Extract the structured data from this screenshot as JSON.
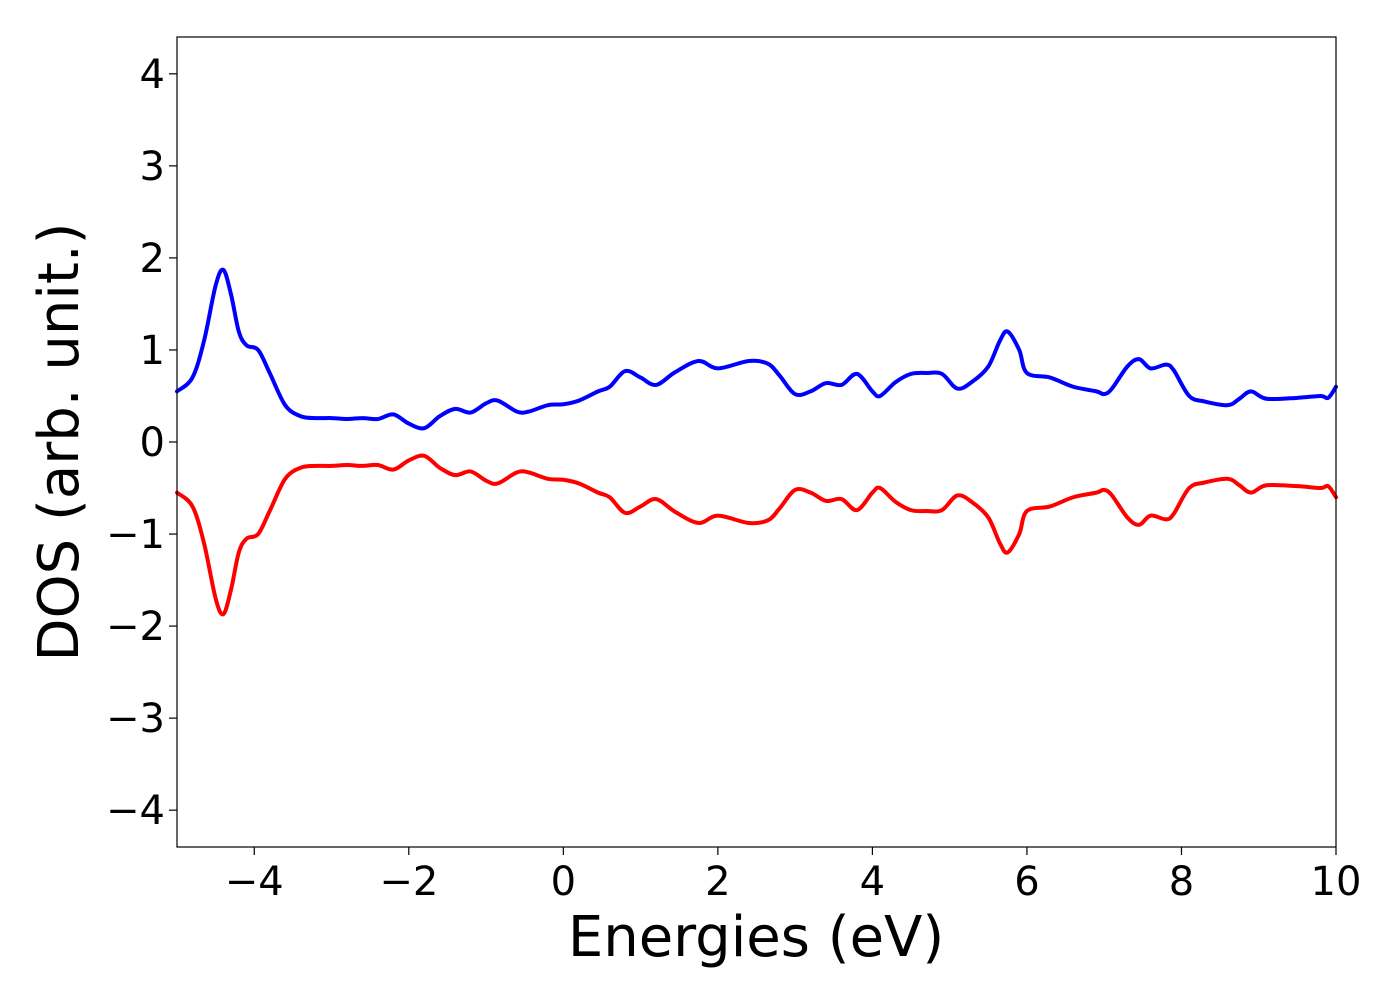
{
  "chart_data": {
    "type": "line",
    "title": "",
    "xlabel": "Energies (eV)",
    "ylabel": "DOS (arb. unit.)",
    "xlim": [
      -5,
      10
    ],
    "ylim": [
      -4.4,
      4.4
    ],
    "xticks": [
      -4,
      -2,
      0,
      2,
      4,
      6,
      8,
      10
    ],
    "xtick_labels": [
      "−4",
      "−2",
      "0",
      "2",
      "4",
      "6",
      "8",
      "10"
    ],
    "yticks": [
      4,
      3,
      2,
      1,
      0,
      -1,
      -2,
      -3,
      -4
    ],
    "ytick_labels": [
      "4",
      "3",
      "2",
      "1",
      "0",
      "−1",
      "−2",
      "−3",
      "−4"
    ],
    "grid": false,
    "legend": false,
    "x": [
      -5.0,
      -4.8,
      -4.65,
      -4.5,
      -4.4,
      -4.3,
      -4.2,
      -4.1,
      -3.95,
      -3.8,
      -3.6,
      -3.4,
      -3.2,
      -3.0,
      -2.8,
      -2.6,
      -2.4,
      -2.2,
      -2.0,
      -1.8,
      -1.6,
      -1.4,
      -1.2,
      -1.0,
      -0.85,
      -0.6,
      -0.45,
      -0.2,
      0.0,
      0.2,
      0.45,
      0.6,
      0.8,
      1.0,
      1.2,
      1.45,
      1.75,
      2.0,
      2.4,
      2.65,
      2.8,
      3.0,
      3.2,
      3.4,
      3.6,
      3.8,
      4.0,
      4.1,
      4.3,
      4.5,
      4.7,
      4.9,
      5.1,
      5.3,
      5.5,
      5.65,
      5.75,
      5.9,
      6.0,
      6.3,
      6.6,
      6.9,
      7.0,
      7.1,
      7.3,
      7.45,
      7.6,
      7.8,
      7.9,
      8.1,
      8.3,
      8.6,
      8.75,
      8.9,
      9.1,
      9.5,
      9.8,
      9.9,
      10.0
    ],
    "series": [
      {
        "color": "#0000ff",
        "values": [
          0.55,
          0.7,
          1.1,
          1.7,
          1.87,
          1.6,
          1.2,
          1.05,
          1.0,
          0.75,
          0.4,
          0.28,
          0.26,
          0.26,
          0.25,
          0.26,
          0.25,
          0.3,
          0.2,
          0.15,
          0.28,
          0.36,
          0.32,
          0.42,
          0.45,
          0.33,
          0.33,
          0.4,
          0.41,
          0.45,
          0.55,
          0.6,
          0.77,
          0.7,
          0.62,
          0.76,
          0.88,
          0.8,
          0.88,
          0.85,
          0.72,
          0.52,
          0.55,
          0.64,
          0.62,
          0.74,
          0.55,
          0.5,
          0.65,
          0.74,
          0.75,
          0.74,
          0.58,
          0.66,
          0.82,
          1.1,
          1.2,
          1.0,
          0.75,
          0.7,
          0.6,
          0.55,
          0.52,
          0.58,
          0.82,
          0.9,
          0.8,
          0.84,
          0.78,
          0.5,
          0.44,
          0.4,
          0.47,
          0.55,
          0.47,
          0.48,
          0.5,
          0.48,
          0.6
        ]
      },
      {
        "color": "#ff0000",
        "values": [
          -0.55,
          -0.7,
          -1.1,
          -1.7,
          -1.87,
          -1.6,
          -1.2,
          -1.05,
          -1.0,
          -0.75,
          -0.4,
          -0.28,
          -0.26,
          -0.26,
          -0.25,
          -0.26,
          -0.25,
          -0.3,
          -0.2,
          -0.15,
          -0.28,
          -0.36,
          -0.32,
          -0.42,
          -0.45,
          -0.33,
          -0.33,
          -0.4,
          -0.41,
          -0.45,
          -0.55,
          -0.6,
          -0.77,
          -0.7,
          -0.62,
          -0.76,
          -0.88,
          -0.8,
          -0.88,
          -0.85,
          -0.72,
          -0.52,
          -0.55,
          -0.64,
          -0.62,
          -0.74,
          -0.55,
          -0.5,
          -0.65,
          -0.74,
          -0.75,
          -0.74,
          -0.58,
          -0.66,
          -0.82,
          -1.1,
          -1.2,
          -1.0,
          -0.75,
          -0.7,
          -0.6,
          -0.55,
          -0.52,
          -0.58,
          -0.82,
          -0.9,
          -0.8,
          -0.84,
          -0.78,
          -0.5,
          -0.44,
          -0.4,
          -0.47,
          -0.55,
          -0.47,
          -0.48,
          -0.5,
          -0.48,
          -0.6
        ]
      }
    ]
  }
}
